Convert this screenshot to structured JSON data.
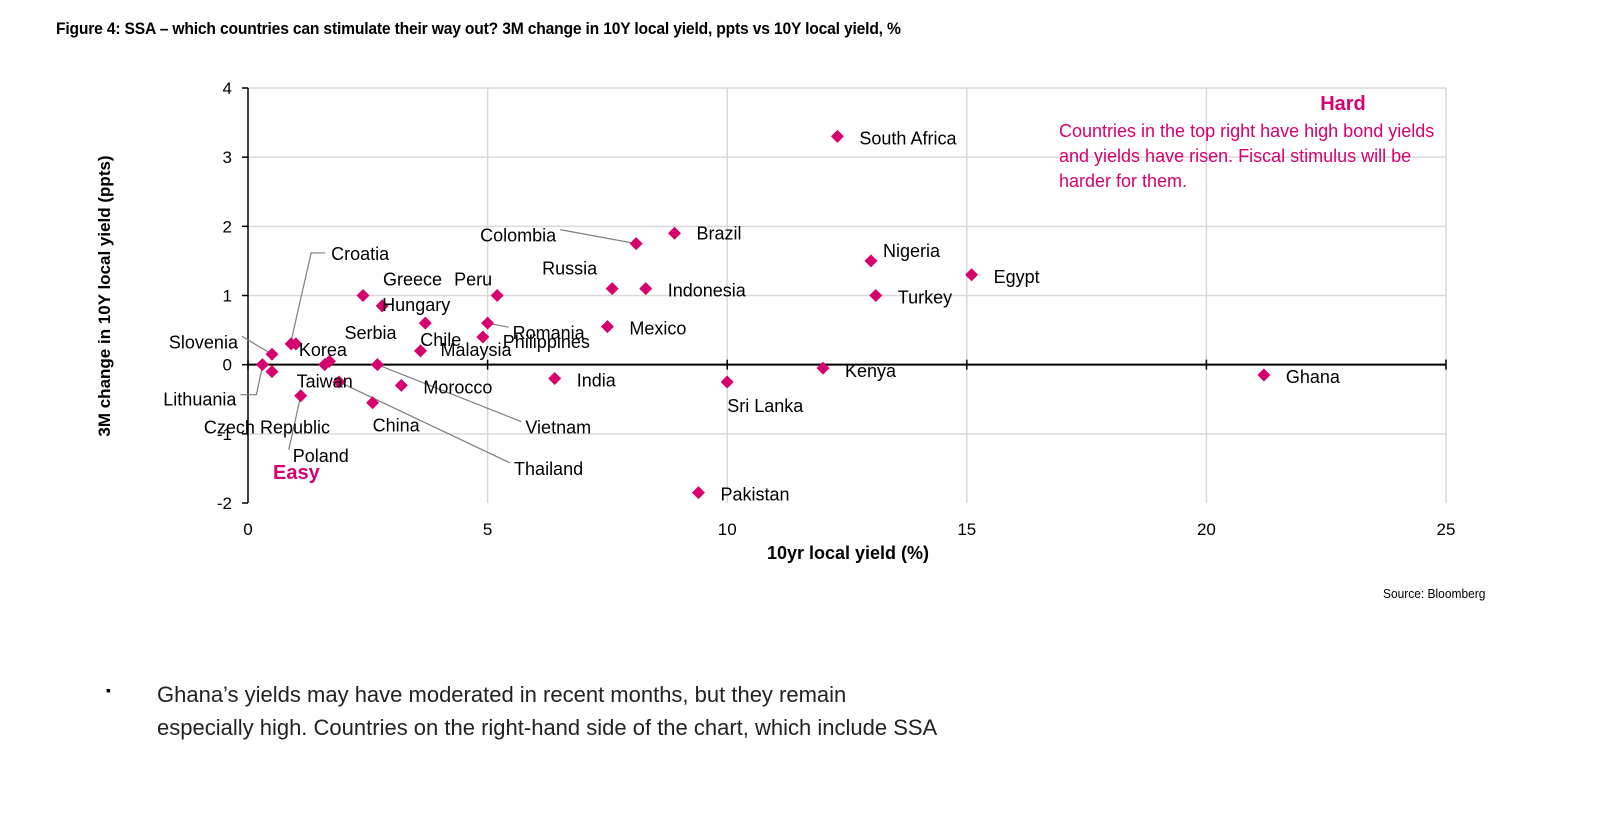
{
  "figure_title": "Figure 4: SSA – which countries can stimulate their way out? 3M change in 10Y local yield, ppts vs 10Y local yield, %",
  "source": "Source: Bloomberg",
  "bullet_symbol": "▪",
  "paragraph_lines": [
    "Ghana’s yields may have moderated in recent months, but they remain",
    "especially high. Countries on the right-hand side of the chart, which include SSA"
  ],
  "colors": {
    "accent": "#d6006e",
    "axis": "#000000",
    "grid": "#d9d9d9",
    "leader": "#7f7f7f"
  },
  "chart_data": {
    "type": "scatter",
    "title": "",
    "xlabel": "10yr local yield (%)",
    "ylabel": "3M change in 10Y local yield (ppts)",
    "xlim": [
      0,
      25
    ],
    "ylim": [
      -2,
      4
    ],
    "xticks": [
      0,
      5,
      10,
      15,
      20,
      25
    ],
    "yticks": [
      -2,
      -1,
      0,
      1,
      2,
      3,
      4
    ],
    "grid": true,
    "marker": "diamond",
    "annotations": [
      {
        "title": "Hard",
        "text_lines": [
          "Countries in the top right have high bond yields",
          "and yields have risen. Fiscal stimulus will be",
          "harder for them."
        ]
      },
      {
        "title": "Easy",
        "text_lines": []
      }
    ],
    "points": [
      {
        "label": "South Africa",
        "x": 12.3,
        "y": 3.3
      },
      {
        "label": "Brazil",
        "x": 8.9,
        "y": 1.9
      },
      {
        "label": "Colombia",
        "x": 8.1,
        "y": 1.75
      },
      {
        "label": "Nigeria",
        "x": 13.0,
        "y": 1.5
      },
      {
        "label": "Egypt",
        "x": 15.1,
        "y": 1.3
      },
      {
        "label": "Turkey",
        "x": 13.1,
        "y": 1.0
      },
      {
        "label": "Indonesia",
        "x": 8.3,
        "y": 1.1
      },
      {
        "label": "Russia",
        "x": 7.6,
        "y": 1.1
      },
      {
        "label": "Peru",
        "x": 5.2,
        "y": 1.0
      },
      {
        "label": "Romania",
        "x": 5.0,
        "y": 0.6
      },
      {
        "label": "Mexico",
        "x": 7.5,
        "y": 0.55
      },
      {
        "label": "Philippines",
        "x": 4.9,
        "y": 0.4
      },
      {
        "label": "Greece",
        "x": 2.4,
        "y": 1.0
      },
      {
        "label": "Hungary",
        "x": 2.8,
        "y": 0.85
      },
      {
        "label": "Chile",
        "x": 3.7,
        "y": 0.6
      },
      {
        "label": "Malaysia",
        "x": 3.6,
        "y": 0.2
      },
      {
        "label": "Croatia",
        "x": 0.9,
        "y": 0.3
      },
      {
        "label": "Korea",
        "x": 1.0,
        "y": 0.3
      },
      {
        "label": "Serbia",
        "x": 1.7,
        "y": 0.05
      },
      {
        "label": "Slovenia",
        "x": 0.5,
        "y": 0.15
      },
      {
        "label": "Lithuania",
        "x": 0.3,
        "y": 0.0
      },
      {
        "label": "Czech Republic",
        "x": 0.5,
        "y": -0.1
      },
      {
        "label": "Taiwan",
        "x": 1.6,
        "y": 0.0
      },
      {
        "label": "Poland",
        "x": 1.1,
        "y": -0.45
      },
      {
        "label": "Morocco",
        "x": 3.2,
        "y": -0.3
      },
      {
        "label": "Vietnam",
        "x": 2.7,
        "y": 0.0
      },
      {
        "label": "Thailand",
        "x": 1.9,
        "y": -0.25
      },
      {
        "label": "China",
        "x": 2.6,
        "y": -0.55
      },
      {
        "label": "India",
        "x": 6.4,
        "y": -0.2
      },
      {
        "label": "Sri Lanka",
        "x": 10.0,
        "y": -0.25
      },
      {
        "label": "Kenya",
        "x": 12.0,
        "y": -0.05
      },
      {
        "label": "Ghana",
        "x": 21.2,
        "y": -0.15
      },
      {
        "label": "Pakistan",
        "x": 9.4,
        "y": -1.85
      }
    ]
  }
}
